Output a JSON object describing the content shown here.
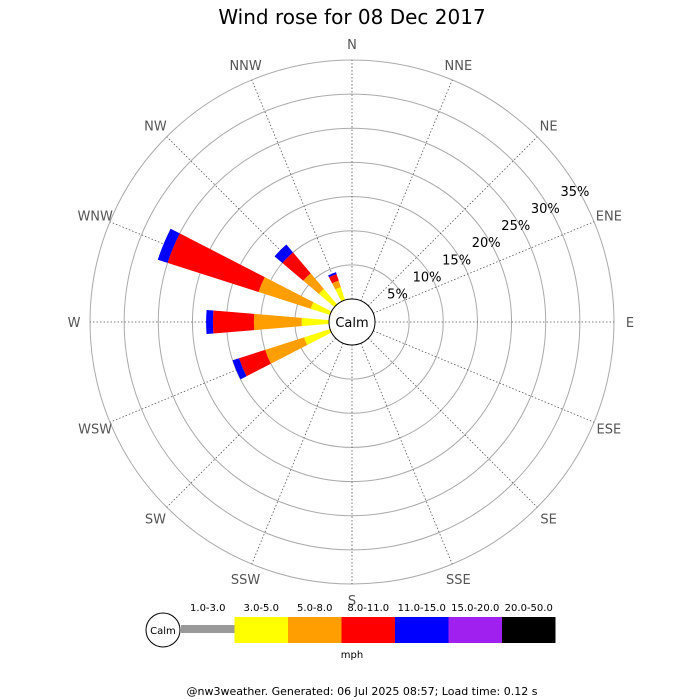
{
  "chart_data": {
    "type": "windrose",
    "title": "Wind rose for 08 Dec 2017",
    "calm_label": "Calm",
    "unit": "mph",
    "directions": [
      "N",
      "NNE",
      "NE",
      "ENE",
      "E",
      "ESE",
      "SE",
      "SSE",
      "S",
      "SSW",
      "SW",
      "WSW",
      "W",
      "WNW",
      "NW",
      "NNW"
    ],
    "radial_ticks": [
      "5%",
      "10%",
      "15%",
      "20%",
      "25%",
      "30%",
      "35%"
    ],
    "radial_values": [
      5,
      10,
      15,
      20,
      25,
      30,
      35
    ],
    "bins": [
      "1.0-3.0",
      "3.0-5.0",
      "5.0-8.0",
      "8.0-11.0",
      "11.0-15.0",
      "15.0-20.0",
      "20.0-50.0"
    ],
    "bin_colors": [
      "#999999",
      "#ffff00",
      "#ff9e00",
      "#ff0000",
      "#0000ff",
      "#a020f0",
      "#000000"
    ],
    "series": [
      {
        "direction": "N",
        "cumulative": [
          0,
          0,
          0,
          0,
          0,
          0,
          0
        ]
      },
      {
        "direction": "NNE",
        "cumulative": [
          0,
          0,
          0,
          0,
          0,
          0,
          0
        ]
      },
      {
        "direction": "NE",
        "cumulative": [
          0,
          0,
          0,
          0,
          0,
          0,
          0
        ]
      },
      {
        "direction": "ENE",
        "cumulative": [
          0,
          0,
          0,
          0,
          0,
          0,
          0
        ]
      },
      {
        "direction": "E",
        "cumulative": [
          0,
          0,
          0,
          0,
          0,
          0,
          0
        ]
      },
      {
        "direction": "ESE",
        "cumulative": [
          0,
          0,
          0,
          0,
          0,
          0,
          0
        ]
      },
      {
        "direction": "SE",
        "cumulative": [
          0,
          0,
          0,
          0,
          0,
          0,
          0
        ]
      },
      {
        "direction": "SSE",
        "cumulative": [
          0,
          0,
          0,
          0,
          0,
          0,
          0
        ]
      },
      {
        "direction": "S",
        "cumulative": [
          0,
          0,
          0,
          0,
          0,
          0,
          0
        ]
      },
      {
        "direction": "SSW",
        "cumulative": [
          0,
          0,
          0,
          0,
          0,
          0,
          0
        ]
      },
      {
        "direction": "SW",
        "cumulative": [
          0,
          0,
          0,
          0,
          0,
          0,
          0
        ]
      },
      {
        "direction": "WSW",
        "cumulative": [
          0,
          4,
          10,
          14,
          15,
          15,
          15
        ]
      },
      {
        "direction": "W",
        "cumulative": [
          0,
          4,
          11,
          17,
          18,
          18,
          18
        ]
      },
      {
        "direction": "WNW",
        "cumulative": [
          0,
          3,
          11,
          25,
          26.5,
          26.5,
          26.5
        ]
      },
      {
        "direction": "NW",
        "cumulative": [
          0,
          3,
          6,
          10,
          11.5,
          11.5,
          11.5
        ]
      },
      {
        "direction": "NNW",
        "cumulative": [
          0,
          2,
          3,
          4,
          4.3,
          4.3,
          4.3
        ]
      }
    ]
  },
  "legend": {
    "calm_label": "Calm",
    "bins": [
      "1.0-3.0",
      "3.0-5.0",
      "5.0-8.0",
      "8.0-11.0",
      "11.0-15.0",
      "15.0-20.0",
      "20.0-50.0"
    ],
    "unit": "mph"
  },
  "footer": "@nw3weather. Generated: 06 Jul 2025 08:57; Load time: 0.12 s"
}
